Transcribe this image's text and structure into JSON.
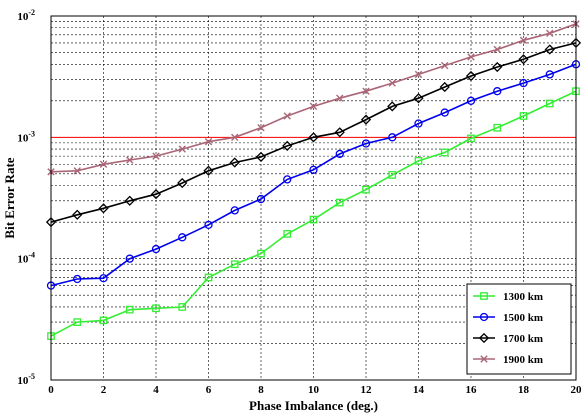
{
  "chart_data": {
    "type": "line",
    "xlabel": "Phase Imbalance (deg.)",
    "ylabel": "Bit Error Rate",
    "x": [
      0,
      1,
      2,
      3,
      4,
      5,
      6,
      7,
      8,
      9,
      10,
      11,
      12,
      13,
      14,
      15,
      16,
      17,
      18,
      19,
      20
    ],
    "xlim": [
      0,
      20
    ],
    "xticks": [
      0,
      2,
      4,
      6,
      8,
      10,
      12,
      14,
      16,
      18,
      20
    ],
    "yscale": "log",
    "ylim": [
      1e-05,
      0.01
    ],
    "yticks": [
      {
        "base": "10",
        "exp": "-2"
      },
      {
        "base": "10",
        "exp": "-3"
      },
      {
        "base": "10",
        "exp": "-4"
      },
      {
        "base": "10",
        "exp": "-5"
      }
    ],
    "grid": true,
    "legend_position": "bottom-right",
    "reference_line": {
      "y": 0.001,
      "color": "#ff0000"
    },
    "series": [
      {
        "name": "1300 km",
        "color": "#33ee33",
        "marker": "square",
        "values": [
          2.3e-05,
          3e-05,
          3.1e-05,
          3.8e-05,
          3.9e-05,
          4e-05,
          7e-05,
          9e-05,
          0.00011,
          0.00016,
          0.00021,
          0.00029,
          0.00037,
          0.00049,
          0.00064,
          0.00075,
          0.00098,
          0.0012,
          0.0015,
          0.0019,
          0.0024
        ]
      },
      {
        "name": "1500 km",
        "color": "#0000ee",
        "marker": "circle",
        "values": [
          6e-05,
          6.8e-05,
          6.9e-05,
          0.0001,
          0.00012,
          0.00015,
          0.00019,
          0.00025,
          0.00031,
          0.00045,
          0.00054,
          0.00073,
          0.00089,
          0.001,
          0.0013,
          0.0016,
          0.002,
          0.0024,
          0.0028,
          0.0033,
          0.004
        ]
      },
      {
        "name": "1700 km",
        "color": "#000000",
        "marker": "diamond",
        "values": [
          0.0002,
          0.00023,
          0.00026,
          0.0003,
          0.00034,
          0.00042,
          0.00053,
          0.00062,
          0.00069,
          0.00085,
          0.001,
          0.0011,
          0.0014,
          0.0018,
          0.0021,
          0.0026,
          0.0032,
          0.0038,
          0.0044,
          0.0053,
          0.006
        ]
      },
      {
        "name": "1900 km",
        "color": "#aa6677",
        "marker": "x",
        "values": [
          0.00052,
          0.00053,
          0.0006,
          0.00065,
          0.0007,
          0.0008,
          0.00092,
          0.001,
          0.0012,
          0.0015,
          0.0018,
          0.0021,
          0.0024,
          0.0028,
          0.0033,
          0.0039,
          0.0046,
          0.0053,
          0.0063,
          0.0072,
          0.0086
        ]
      }
    ]
  }
}
